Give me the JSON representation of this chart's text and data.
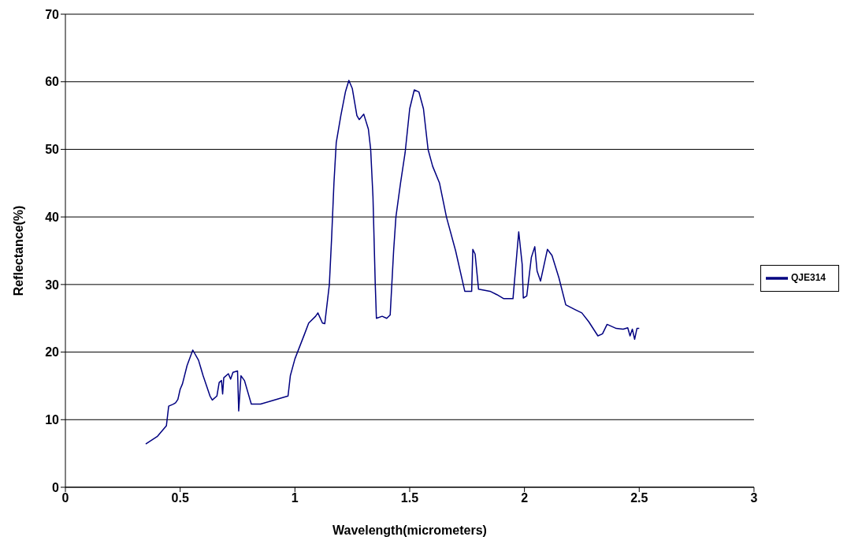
{
  "chart_data": {
    "type": "line",
    "xlabel": "Wavelength(micrometers)",
    "ylabel": "Reflectance(%)",
    "x": [
      0.35,
      0.4,
      0.44,
      0.45,
      0.47,
      0.48,
      0.49,
      0.5,
      0.51,
      0.53,
      0.555,
      0.58,
      0.6,
      0.63,
      0.64,
      0.66,
      0.67,
      0.68,
      0.685,
      0.69,
      0.71,
      0.72,
      0.73,
      0.75,
      0.755,
      0.765,
      0.78,
      0.81,
      0.85,
      0.9,
      0.97,
      0.98,
      1.0,
      1.04,
      1.06,
      1.09,
      1.1,
      1.12,
      1.13,
      1.15,
      1.16,
      1.17,
      1.18,
      1.2,
      1.22,
      1.235,
      1.25,
      1.27,
      1.28,
      1.3,
      1.32,
      1.33,
      1.34,
      1.35,
      1.355,
      1.38,
      1.4,
      1.415,
      1.43,
      1.44,
      1.46,
      1.48,
      1.5,
      1.52,
      1.54,
      1.56,
      1.58,
      1.6,
      1.63,
      1.66,
      1.7,
      1.74,
      1.77,
      1.775,
      1.785,
      1.8,
      1.85,
      1.88,
      1.91,
      1.95,
      1.975,
      1.99,
      1.995,
      2.01,
      2.03,
      2.045,
      2.055,
      2.07,
      2.1,
      2.12,
      2.15,
      2.18,
      2.22,
      2.25,
      2.28,
      2.32,
      2.34,
      2.36,
      2.4,
      2.43,
      2.45,
      2.46,
      2.47,
      2.48,
      2.49,
      2.5
    ],
    "series": [
      {
        "name": "QJE314",
        "color": "#000080",
        "values": [
          6.4,
          7.5,
          9.1,
          12.0,
          12.3,
          12.5,
          13.0,
          14.5,
          15.3,
          18,
          20.3,
          18.8,
          16.5,
          13.5,
          12.9,
          13.5,
          15.5,
          15.8,
          13.8,
          16.2,
          16.8,
          16.0,
          17.0,
          17.2,
          11.3,
          16.5,
          15.8,
          12.3,
          12.3,
          12.8,
          13.5,
          16.5,
          19.0,
          22.5,
          24.3,
          25.3,
          25.8,
          24.3,
          24.2,
          30,
          37,
          45,
          51,
          55,
          58.5,
          60.2,
          59,
          55,
          54.4,
          55.2,
          53,
          50,
          43,
          30,
          25.0,
          25.3,
          25.0,
          25.5,
          35,
          40,
          45,
          49.5,
          56,
          58.8,
          58.5,
          56,
          50,
          47.5,
          45,
          40,
          35,
          29.0,
          29.0,
          35.2,
          34.5,
          29.3,
          29.0,
          28.5,
          27.9,
          27.9,
          37.8,
          33,
          28.0,
          28.3,
          34,
          35.6,
          32,
          30.5,
          35.2,
          34.3,
          31,
          27.0,
          26.3,
          25.8,
          24.5,
          22.4,
          22.7,
          24.1,
          23.5,
          23.4,
          23.6,
          22.4,
          23.4,
          21.9,
          23.5,
          23.5
        ]
      }
    ],
    "xlim": [
      0,
      3
    ],
    "xticks": [
      0,
      0.5,
      1,
      1.5,
      2,
      2.5,
      3
    ],
    "ylim": [
      0,
      70
    ],
    "yticks": [
      0,
      10,
      20,
      30,
      40,
      50,
      60,
      70
    ],
    "grid": "y",
    "legend": "right",
    "marker": "none",
    "line_style": "solid"
  }
}
